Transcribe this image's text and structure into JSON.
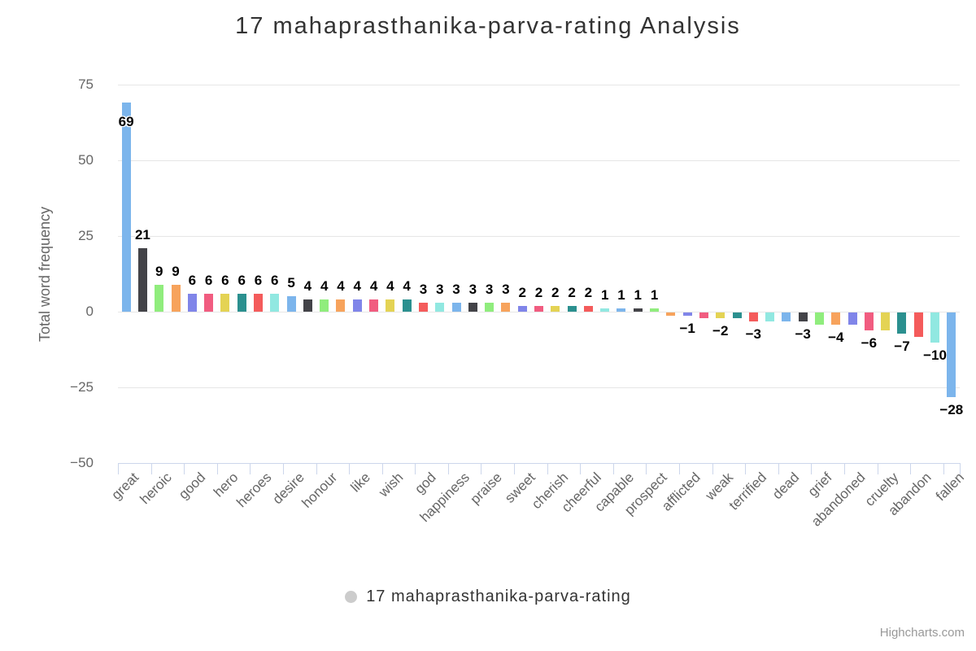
{
  "chart": {
    "title": "17 mahaprasthanika-parva-rating Analysis",
    "credits": "Highcharts.com"
  },
  "legend": {
    "label": "17 mahaprasthanika-parva-rating",
    "marker_color": "#cccccc"
  },
  "colors": {
    "background": "#ffffff",
    "title_text": "#333333",
    "axis_text": "#666666",
    "grid_line": "#e6e6e6",
    "axis_line": "#ccd6eb",
    "value_label_text": "#000000",
    "credits_text": "#999999"
  },
  "chart_data": {
    "type": "bar",
    "title": "17 mahaprasthanika-parva-rating Analysis",
    "xlabel": "",
    "ylabel": "Total word frequency",
    "ylim": [
      -50,
      75
    ],
    "yticks": [
      75,
      50,
      25,
      0,
      -25,
      -50
    ],
    "grid": true,
    "legend_position": "bottom-center",
    "series_name": "17 mahaprasthanika-parva-rating",
    "palette": [
      "#7cb5ec",
      "#434348",
      "#90ed7d",
      "#f7a35c",
      "#8085e9",
      "#f15c80",
      "#e4d354",
      "#2b908f",
      "#f45b5b",
      "#91e8e1"
    ],
    "category_label_step": 2,
    "points": [
      {
        "label": "great",
        "value": 69,
        "show_value": true
      },
      {
        "label": null,
        "value": 21,
        "show_value": true
      },
      {
        "label": "heroic",
        "value": 9,
        "show_value": true
      },
      {
        "label": null,
        "value": 9,
        "show_value": true
      },
      {
        "label": "good",
        "value": 6,
        "show_value": true
      },
      {
        "label": null,
        "value": 6,
        "show_value": true
      },
      {
        "label": "hero",
        "value": 6,
        "show_value": true
      },
      {
        "label": null,
        "value": 6,
        "show_value": true
      },
      {
        "label": "heroes",
        "value": 6,
        "show_value": true
      },
      {
        "label": null,
        "value": 6,
        "show_value": true
      },
      {
        "label": "desire",
        "value": 5,
        "show_value": true
      },
      {
        "label": null,
        "value": 4,
        "show_value": true
      },
      {
        "label": "honour",
        "value": 4,
        "show_value": true
      },
      {
        "label": null,
        "value": 4,
        "show_value": true
      },
      {
        "label": "like",
        "value": 4,
        "show_value": true
      },
      {
        "label": null,
        "value": 4,
        "show_value": true
      },
      {
        "label": "wish",
        "value": 4,
        "show_value": true
      },
      {
        "label": null,
        "value": 4,
        "show_value": true
      },
      {
        "label": "god",
        "value": 3,
        "show_value": true
      },
      {
        "label": null,
        "value": 3,
        "show_value": true
      },
      {
        "label": "happiness",
        "value": 3,
        "show_value": true
      },
      {
        "label": null,
        "value": 3,
        "show_value": true
      },
      {
        "label": "praise",
        "value": 3,
        "show_value": true
      },
      {
        "label": null,
        "value": 3,
        "show_value": true
      },
      {
        "label": "sweet",
        "value": 2,
        "show_value": true
      },
      {
        "label": null,
        "value": 2,
        "show_value": true
      },
      {
        "label": "cherish",
        "value": 2,
        "show_value": true
      },
      {
        "label": null,
        "value": 2,
        "show_value": true
      },
      {
        "label": "cheerful",
        "value": 2,
        "show_value": true
      },
      {
        "label": null,
        "value": 1,
        "show_value": true
      },
      {
        "label": "capable",
        "value": 1,
        "show_value": true
      },
      {
        "label": null,
        "value": 1,
        "show_value": true
      },
      {
        "label": "prospect",
        "value": 1,
        "show_value": true
      },
      {
        "label": null,
        "value": -1,
        "show_value": false
      },
      {
        "label": "afflicted",
        "value": -1,
        "show_value": true
      },
      {
        "label": null,
        "value": -2,
        "show_value": false
      },
      {
        "label": "weak",
        "value": -2,
        "show_value": true
      },
      {
        "label": null,
        "value": -2,
        "show_value": false
      },
      {
        "label": "terrified",
        "value": -3,
        "show_value": true
      },
      {
        "label": null,
        "value": -3,
        "show_value": false
      },
      {
        "label": "dead",
        "value": -3,
        "show_value": false
      },
      {
        "label": null,
        "value": -3,
        "show_value": true
      },
      {
        "label": "grief",
        "value": -4,
        "show_value": false
      },
      {
        "label": null,
        "value": -4,
        "show_value": true
      },
      {
        "label": "abandoned",
        "value": -4,
        "show_value": false
      },
      {
        "label": null,
        "value": -6,
        "show_value": true
      },
      {
        "label": "cruelty",
        "value": -6,
        "show_value": false
      },
      {
        "label": null,
        "value": -7,
        "show_value": true
      },
      {
        "label": "abandon",
        "value": -8,
        "show_value": false
      },
      {
        "label": null,
        "value": -10,
        "show_value": true
      },
      {
        "label": "fallen",
        "value": -28,
        "show_value": true
      }
    ]
  }
}
